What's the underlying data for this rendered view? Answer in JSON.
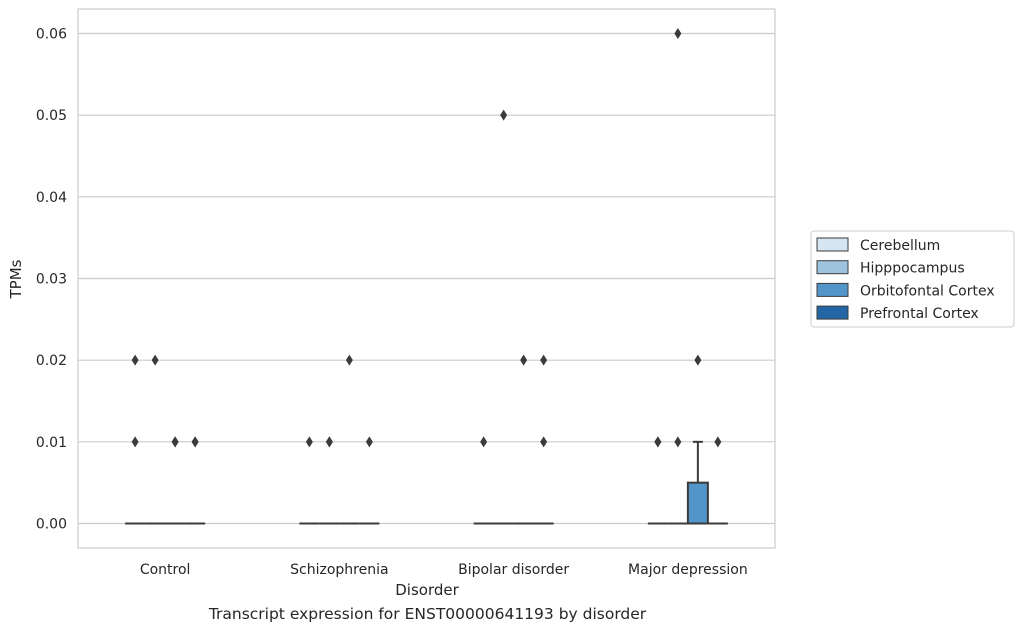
{
  "caption": "Transcript expression for ENST00000641193 by disorder",
  "colors": {
    "grid": "#cccccc",
    "frame": "#cccccc",
    "box_edge": "#3b3b3b",
    "Cerebellum": "#d6e5f2",
    "Hipppocampus": "#9dc3df",
    "Orbitofontal Cortex": "#5296c9",
    "Prefrontal Cortex": "#2465a6"
  },
  "chart_data": {
    "type": "box",
    "xlabel": "Disorder",
    "ylabel": "TPMs",
    "ylim": [
      -0.003,
      0.063
    ],
    "yticks": [
      0.0,
      0.01,
      0.02,
      0.03,
      0.04,
      0.05,
      0.06
    ],
    "ytick_labels": [
      "0.00",
      "0.01",
      "0.02",
      "0.03",
      "0.04",
      "0.05",
      "0.06"
    ],
    "grid": true,
    "legend_position": "right",
    "categories": [
      "Control",
      "Schizophrenia",
      "Bipolar disorder",
      "Major depression"
    ],
    "hue": [
      "Cerebellum",
      "Hipppocampus",
      "Orbitofontal Cortex",
      "Prefrontal Cortex"
    ],
    "boxes": [
      {
        "category": "Control",
        "tissue": "Cerebellum",
        "min": 0,
        "q1": 0,
        "median": 0,
        "q3": 0,
        "max": 0,
        "outliers": [
          0.01,
          0.02
        ]
      },
      {
        "category": "Control",
        "tissue": "Hipppocampus",
        "min": 0,
        "q1": 0,
        "median": 0,
        "q3": 0,
        "max": 0,
        "outliers": [
          0.02
        ]
      },
      {
        "category": "Control",
        "tissue": "Orbitofontal Cortex",
        "min": 0,
        "q1": 0,
        "median": 0,
        "q3": 0,
        "max": 0,
        "outliers": [
          0.01,
          0.01
        ]
      },
      {
        "category": "Control",
        "tissue": "Prefrontal Cortex",
        "min": 0,
        "q1": 0,
        "median": 0,
        "q3": 0,
        "max": 0,
        "outliers": [
          0.01,
          0.01
        ]
      },
      {
        "category": "Schizophrenia",
        "tissue": "Cerebellum",
        "min": 0,
        "q1": 0,
        "median": 0,
        "q3": 0,
        "max": 0,
        "outliers": [
          0.01
        ]
      },
      {
        "category": "Schizophrenia",
        "tissue": "Hipppocampus",
        "min": 0,
        "q1": 0,
        "median": 0,
        "q3": 0,
        "max": 0,
        "outliers": [
          0.01,
          0.01
        ]
      },
      {
        "category": "Schizophrenia",
        "tissue": "Orbitofontal Cortex",
        "min": 0,
        "q1": 0,
        "median": 0,
        "q3": 0,
        "max": 0,
        "outliers": [
          0.02
        ]
      },
      {
        "category": "Schizophrenia",
        "tissue": "Prefrontal Cortex",
        "min": 0,
        "q1": 0,
        "median": 0,
        "q3": 0,
        "max": 0,
        "outliers": [
          0.01
        ]
      },
      {
        "category": "Bipolar disorder",
        "tissue": "Cerebellum",
        "min": 0,
        "q1": 0,
        "median": 0,
        "q3": 0,
        "max": 0,
        "outliers": [
          0.01
        ]
      },
      {
        "category": "Bipolar disorder",
        "tissue": "Hipppocampus",
        "min": 0,
        "q1": 0,
        "median": 0,
        "q3": 0,
        "max": 0,
        "outliers": [
          0.05
        ]
      },
      {
        "category": "Bipolar disorder",
        "tissue": "Orbitofontal Cortex",
        "min": 0,
        "q1": 0,
        "median": 0,
        "q3": 0,
        "max": 0,
        "outliers": [
          0.02
        ]
      },
      {
        "category": "Bipolar disorder",
        "tissue": "Prefrontal Cortex",
        "min": 0,
        "q1": 0,
        "median": 0,
        "q3": 0,
        "max": 0,
        "outliers": [
          0.01,
          0.02
        ]
      },
      {
        "category": "Major depression",
        "tissue": "Cerebellum",
        "min": 0,
        "q1": 0,
        "median": 0,
        "q3": 0,
        "max": 0,
        "outliers": [
          0.01,
          0.01
        ]
      },
      {
        "category": "Major depression",
        "tissue": "Hipppocampus",
        "min": 0,
        "q1": 0,
        "median": 0,
        "q3": 0,
        "max": 0,
        "outliers": [
          0.01,
          0.06
        ]
      },
      {
        "category": "Major depression",
        "tissue": "Orbitofontal Cortex",
        "min": 0,
        "q1": 0,
        "median": 0,
        "q3": 0.005,
        "max": 0.01,
        "outliers": [
          0.02
        ]
      },
      {
        "category": "Major depression",
        "tissue": "Prefrontal Cortex",
        "min": 0,
        "q1": 0,
        "median": 0,
        "q3": 0,
        "max": 0,
        "outliers": [
          0.01
        ]
      }
    ]
  }
}
